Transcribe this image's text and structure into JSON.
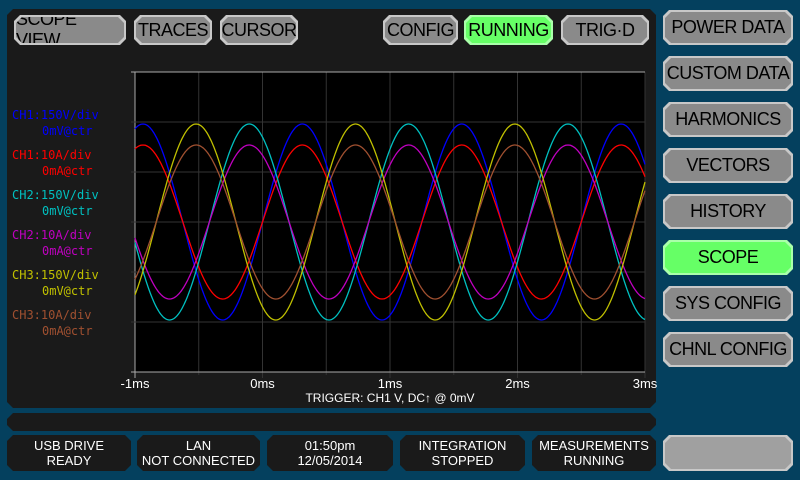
{
  "top_buttons": {
    "scope_view": "SCOPE VIEW",
    "traces": "TRACES",
    "cursor": "CURSOR",
    "config": "CONFIG",
    "running": "RUNNING",
    "trigd": "TRIG·D"
  },
  "side_menu": {
    "items": [
      {
        "label": "POWER DATA",
        "active": false
      },
      {
        "label": "CUSTOM DATA",
        "active": false
      },
      {
        "label": "HARMONICS",
        "active": false
      },
      {
        "label": "VECTORS",
        "active": false
      },
      {
        "label": "HISTORY",
        "active": false
      },
      {
        "label": "SCOPE",
        "active": true
      },
      {
        "label": "SYS CONFIG",
        "active": false
      },
      {
        "label": "CHNL CONFIG",
        "active": false
      }
    ]
  },
  "channels": [
    {
      "scale": "CH1:150V/div",
      "offset": "0mV@ctr",
      "color": "#0000ff"
    },
    {
      "scale": "CH1:10A/div",
      "offset": "0mA@ctr",
      "color": "#ff0000"
    },
    {
      "scale": "CH2:150V/div",
      "offset": "0mV@ctr",
      "color": "#00c0c0"
    },
    {
      "scale": "CH2:10A/div",
      "offset": "0mA@ctr",
      "color": "#c000c0"
    },
    {
      "scale": "CH3:150V/div",
      "offset": "0mV@ctr",
      "color": "#c0c000"
    },
    {
      "scale": "CH3:10A/div",
      "offset": "0mA@ctr",
      "color": "#a05030"
    }
  ],
  "chart_data": {
    "type": "line",
    "x_unit": "ms",
    "xlim": [
      -1,
      3
    ],
    "x_ticks": [
      "-1ms",
      "0ms",
      "1ms",
      "2ms",
      "3ms"
    ],
    "y_divisions": 6,
    "grid": true,
    "trigger": "TRIGGER: CH1 V, DC↑ @ 0mV",
    "series": [
      {
        "name": "CH1 V",
        "color": "#0000ff",
        "unit": "V",
        "per_div": 150,
        "amplitude": 294,
        "frequency_hz": 800,
        "phase_deg": 0
      },
      {
        "name": "CH1 A",
        "color": "#ff0000",
        "unit": "A",
        "per_div": 10,
        "amplitude": 15.4,
        "frequency_hz": 800,
        "phase_deg": 0
      },
      {
        "name": "CH2 V",
        "color": "#00c0c0",
        "unit": "V",
        "per_div": 150,
        "amplitude": 294,
        "frequency_hz": 800,
        "phase_deg": 120
      },
      {
        "name": "CH2 A",
        "color": "#c000c0",
        "unit": "A",
        "per_div": 10,
        "amplitude": 15.4,
        "frequency_hz": 800,
        "phase_deg": 120
      },
      {
        "name": "CH3 V",
        "color": "#c0c000",
        "unit": "V",
        "per_div": 150,
        "amplitude": 294,
        "frequency_hz": 800,
        "phase_deg": -120
      },
      {
        "name": "CH3 A",
        "color": "#a05030",
        "unit": "A",
        "per_div": 10,
        "amplitude": 15.4,
        "frequency_hz": 800,
        "phase_deg": -120
      }
    ]
  },
  "status": {
    "usb": {
      "line1": "USB DRIVE",
      "line2": "READY"
    },
    "lan": {
      "line1": "LAN",
      "line2": "NOT CONNECTED"
    },
    "clock": {
      "time": "01:50pm",
      "date": "12/05/2014"
    },
    "integration": {
      "line1": "INTEGRATION",
      "line2": "STOPPED"
    },
    "measurements": {
      "line1": "MEASUREMENTS",
      "line2": "RUNNING"
    }
  },
  "colors": {
    "background": "#04405e",
    "panel": "#1a1a1a",
    "active": "#66ff66",
    "button": "#8a8a8a"
  }
}
